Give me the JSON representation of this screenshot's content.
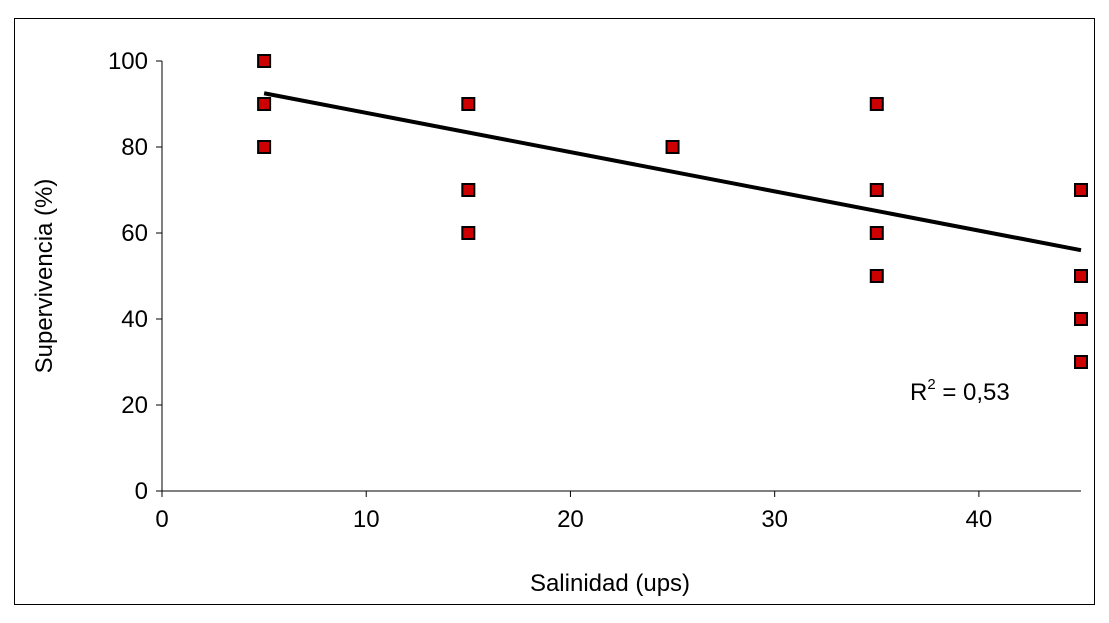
{
  "chart_data": {
    "type": "scatter",
    "xlabel": "Salinidad (ups)",
    "ylabel": "Supervivencia (%)",
    "xlim": [
      0,
      45
    ],
    "ylim": [
      0,
      100
    ],
    "xticks": [
      "0",
      "10",
      "20",
      "30",
      "40"
    ],
    "yticks": [
      "0",
      "20",
      "40",
      "60",
      "80",
      "100"
    ],
    "grid": false,
    "legend": "none",
    "marker_color": "#cc0000",
    "marker_edge_color": "#000000",
    "series": [
      {
        "points": [
          {
            "x": 5,
            "y": 100
          },
          {
            "x": 5,
            "y": 90
          },
          {
            "x": 5,
            "y": 80
          },
          {
            "x": 15,
            "y": 90
          },
          {
            "x": 15,
            "y": 70
          },
          {
            "x": 15,
            "y": 60
          },
          {
            "x": 25,
            "y": 80
          },
          {
            "x": 35,
            "y": 90
          },
          {
            "x": 35,
            "y": 70
          },
          {
            "x": 35,
            "y": 60
          },
          {
            "x": 35,
            "y": 50
          },
          {
            "x": 45,
            "y": 70
          },
          {
            "x": 45,
            "y": 50
          },
          {
            "x": 45,
            "y": 40
          },
          {
            "x": 45,
            "y": 30
          }
        ]
      }
    ],
    "trendline": {
      "type": "linear",
      "x": [
        5,
        45
      ],
      "y": [
        92.5,
        56
      ],
      "color": "#000000"
    },
    "annotation": {
      "base": "R",
      "superscript": "2",
      "rest": " = 0,53"
    }
  }
}
